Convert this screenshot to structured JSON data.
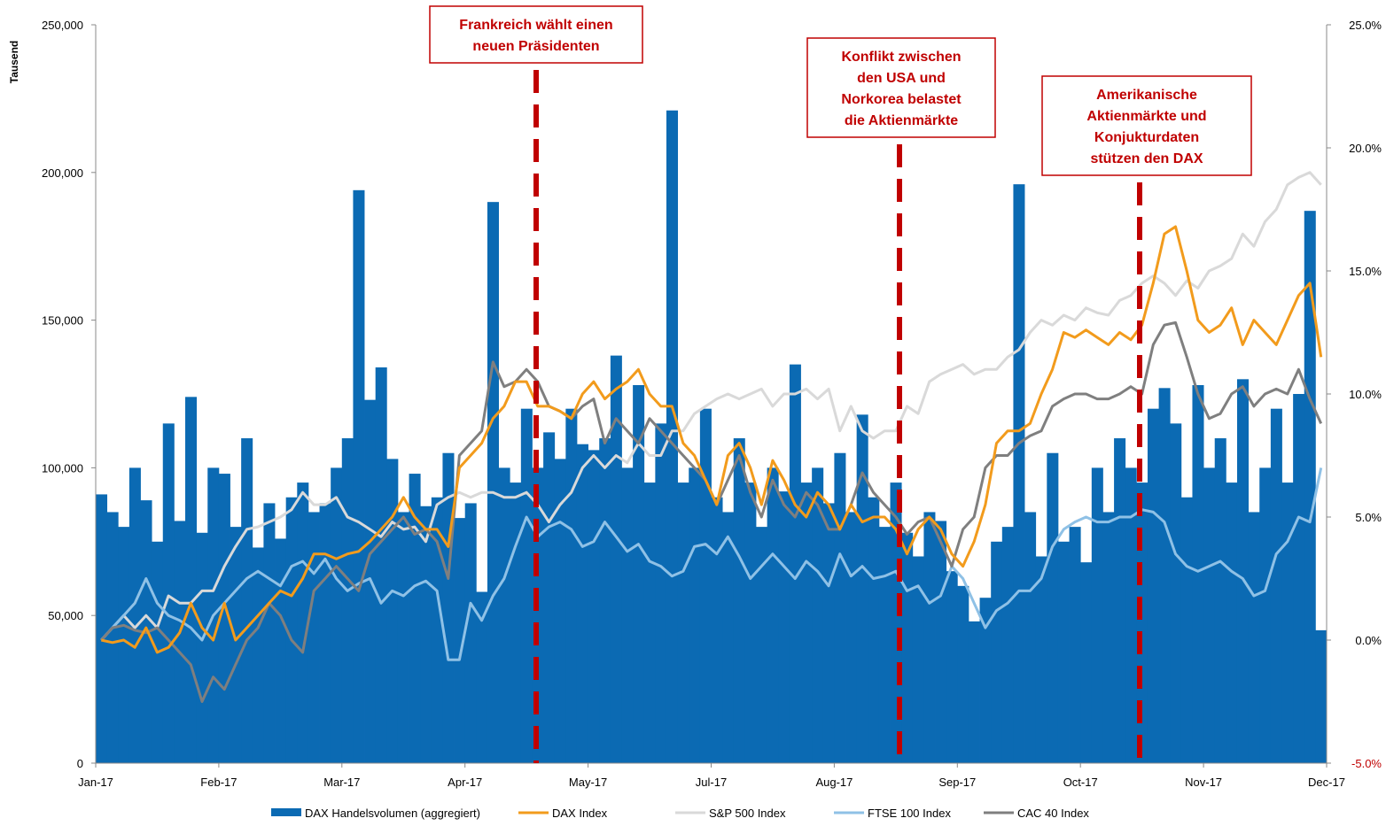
{
  "chart_data": {
    "type": "bar-line",
    "y_axis_label": "Tausend",
    "xtick_labels": [
      "Jan-17",
      "Feb-17",
      "Mar-17",
      "Apr-17",
      "May-17",
      "Jul-17",
      "Aug-17",
      "Sep-17",
      "Oct-17",
      "Nov-17",
      "Dec-17"
    ],
    "ylim": [
      0,
      250000
    ],
    "yticks": [
      {
        "value": 0,
        "label": "0"
      },
      {
        "value": 50000,
        "label": "50,000"
      },
      {
        "value": 100000,
        "label": "100,000"
      },
      {
        "value": 150000,
        "label": "150,000"
      },
      {
        "value": 200000,
        "label": "200,000"
      },
      {
        "value": 250000,
        "label": "250,000"
      }
    ],
    "y2lim": [
      -5,
      25
    ],
    "y2ticks": [
      {
        "value": -5,
        "label": "-5.0%"
      },
      {
        "value": 0,
        "label": "0.0%"
      },
      {
        "value": 5,
        "label": "5.0%"
      },
      {
        "value": 10,
        "label": "10.0%"
      },
      {
        "value": 15,
        "label": "15.0%"
      },
      {
        "value": 20,
        "label": "20.0%"
      },
      {
        "value": 25,
        "label": "25.0%"
      }
    ],
    "series": [
      {
        "name": "DAX Handelsvolumen (aggregiert)",
        "type": "bar",
        "color": "#0b6ab3",
        "values": [
          91000,
          85000,
          80000,
          100000,
          89000,
          75000,
          115000,
          82000,
          124000,
          78000,
          100000,
          98000,
          80000,
          110000,
          73000,
          88000,
          76000,
          90000,
          95000,
          85000,
          88000,
          100000,
          110000,
          194000,
          123000,
          134000,
          103000,
          85000,
          98000,
          87000,
          90000,
          105000,
          83000,
          88000,
          58000,
          190000,
          100000,
          95000,
          120000,
          100000,
          112000,
          103000,
          120000,
          108000,
          106000,
          110000,
          138000,
          100000,
          128000,
          95000,
          115000,
          221000,
          95000,
          100000,
          120000,
          90000,
          85000,
          110000,
          95000,
          80000,
          100000,
          92000,
          135000,
          95000,
          100000,
          88000,
          105000,
          85000,
          118000,
          90000,
          80000,
          95000,
          78000,
          70000,
          85000,
          82000,
          65000,
          60000,
          48000,
          56000,
          75000,
          80000,
          196000,
          85000,
          70000,
          105000,
          75000,
          80000,
          68000,
          100000,
          85000,
          110000,
          100000,
          95000,
          120000,
          127000,
          115000,
          90000,
          128000,
          100000,
          110000,
          95000,
          130000,
          85000,
          100000,
          120000,
          95000,
          125000,
          187000,
          45000
        ]
      },
      {
        "name": "DAX Index",
        "type": "line",
        "axis": "y2",
        "color": "#f29b1c",
        "values": [
          0,
          -0.1,
          0,
          -0.3,
          0.5,
          -0.5,
          -0.3,
          0.3,
          1.5,
          0.5,
          0,
          1.5,
          0,
          0.5,
          1,
          1.5,
          2,
          1.8,
          2.5,
          3.5,
          3.5,
          3.3,
          3.5,
          3.6,
          4,
          4.5,
          5,
          5.8,
          5,
          4.5,
          4.5,
          3.8,
          7,
          7.5,
          8,
          9,
          9.5,
          10.5,
          10.5,
          9.5,
          9.5,
          9.3,
          9,
          10,
          10.5,
          9.8,
          10.2,
          10.5,
          11,
          10,
          9.5,
          9.5,
          8,
          7.5,
          6.5,
          5.5,
          7.5,
          8,
          7,
          5.5,
          7.3,
          6.5,
          5.5,
          5,
          6,
          5.5,
          4.5,
          5.5,
          4.8,
          5,
          5,
          4.5,
          3.5,
          4.5,
          5,
          4.5,
          3.5,
          3,
          4,
          5.5,
          8,
          8.5,
          8.5,
          8.8,
          10,
          11,
          12.5,
          12.3,
          12.6,
          12.3,
          12,
          12.5,
          12.2,
          12.8,
          14.5,
          16.5,
          16.8,
          15,
          13,
          12.5,
          12.8,
          13.5,
          12,
          13,
          12.5,
          12,
          13,
          14,
          14.5,
          11.5
        ]
      },
      {
        "name": "S&P 500 Index",
        "type": "line",
        "axis": "y2",
        "color": "#d9d9d9",
        "values": [
          0,
          0.5,
          1,
          0.5,
          1,
          0.5,
          1.8,
          1.5,
          1.5,
          2,
          2,
          3,
          3.8,
          4.5,
          4.6,
          4.8,
          5,
          5.3,
          6,
          5.5,
          5.5,
          5.8,
          5,
          4.8,
          4.5,
          4.2,
          4.8,
          4.5,
          4.6,
          4,
          5.5,
          5.8,
          6,
          5.8,
          6,
          6,
          5.8,
          5.8,
          6,
          5.5,
          4.8,
          5.5,
          6,
          7,
          7.5,
          7,
          7.5,
          7.2,
          8,
          7.5,
          7.5,
          8.5,
          8.5,
          9.2,
          9.5,
          9.8,
          10,
          9.8,
          10,
          10.2,
          9.5,
          10,
          10,
          10.2,
          9.8,
          10.2,
          8.5,
          9.5,
          8.5,
          8.2,
          8.5,
          8.5,
          9.5,
          9.2,
          10.5,
          10.8,
          11,
          11.2,
          10.8,
          11,
          11,
          11.5,
          11.8,
          12.5,
          13,
          12.8,
          13.2,
          13,
          13.5,
          13.3,
          13.2,
          13.8,
          14,
          14.5,
          14.8,
          14.5,
          14,
          14.6,
          14.3,
          15,
          15.2,
          15.5,
          16.5,
          16,
          17,
          17.5,
          18.5,
          18.8,
          19,
          18.5
        ]
      },
      {
        "name": "FTSE 100 Index",
        "type": "line",
        "axis": "y2",
        "color": "#8fc1e6",
        "values": [
          0,
          0.5,
          1,
          1.5,
          2.5,
          1.5,
          1,
          0.8,
          0.5,
          0,
          1,
          1.5,
          2,
          2.5,
          2.8,
          2.5,
          2.2,
          3,
          3.2,
          2.7,
          3.3,
          2.5,
          2,
          2.3,
          2.5,
          1.5,
          2,
          1.8,
          2.2,
          2.4,
          2,
          -0.8,
          -0.8,
          1.5,
          0.8,
          1.8,
          2.5,
          3.8,
          5,
          4.2,
          4.6,
          4.8,
          4.5,
          3.8,
          4,
          4.8,
          4.2,
          3.6,
          3.9,
          3.2,
          3,
          2.6,
          2.8,
          3.8,
          3.9,
          3.5,
          4.2,
          3.4,
          2.5,
          3,
          3.5,
          3,
          2.5,
          3.2,
          2.8,
          2.2,
          3.5,
          2.6,
          3,
          2.5,
          2.6,
          2.8,
          2,
          2.2,
          1.5,
          1.8,
          3,
          2.5,
          1.5,
          0.5,
          1.2,
          1.5,
          2,
          2,
          2.5,
          3.8,
          4.5,
          4.8,
          5,
          4.8,
          4.8,
          5,
          5,
          5.3,
          5.2,
          4.8,
          3.5,
          3,
          2.8,
          3,
          3.2,
          2.8,
          2.5,
          1.8,
          2,
          3.5,
          4,
          5,
          4.8,
          7
        ]
      },
      {
        "name": "CAC 40 Index",
        "type": "line",
        "axis": "y2",
        "color": "#7f7f7f",
        "values": [
          0,
          0.5,
          0.6,
          0.4,
          0.3,
          0.5,
          0,
          -0.5,
          -1,
          -2.5,
          -1.5,
          -2,
          -1,
          0,
          0.5,
          1.5,
          1,
          0,
          -0.5,
          2,
          2.5,
          3,
          2.5,
          2,
          3.5,
          4,
          4.5,
          5,
          4.3,
          4.5,
          4,
          2.5,
          7.5,
          8,
          8.5,
          11.3,
          10.3,
          10.5,
          11,
          10.5,
          9.5,
          9.3,
          9,
          9.5,
          9.8,
          8,
          9,
          8.5,
          8,
          9,
          8.5,
          8,
          7.5,
          7,
          6.5,
          5.5,
          6.5,
          7.5,
          6,
          5,
          6.5,
          5.5,
          5,
          6,
          5.5,
          4.5,
          4.5,
          5.5,
          6.8,
          6,
          5.5,
          5,
          4.3,
          4.8,
          5,
          4,
          3,
          4.5,
          5,
          7,
          7.5,
          7.5,
          8,
          8.3,
          8.5,
          9.5,
          9.8,
          10,
          10,
          9.8,
          9.8,
          10,
          10.3,
          10,
          12,
          12.8,
          12.9,
          11.5,
          10,
          9,
          9.2,
          10,
          10.3,
          9.5,
          10,
          10.2,
          10,
          11,
          9.8,
          8.8
        ]
      }
    ],
    "annotations": [
      {
        "lines": [
          "Frankreich wählt einen",
          "neuen Präsidenten"
        ]
      },
      {
        "lines": [
          "Konflikt zwischen",
          "den USA und",
          "Norkorea belastet",
          "die Aktienmärkte"
        ]
      },
      {
        "lines": [
          "Amerikanische",
          "Aktienmärkte und",
          "Konjukturdaten",
          "stützen den DAX"
        ]
      }
    ]
  }
}
